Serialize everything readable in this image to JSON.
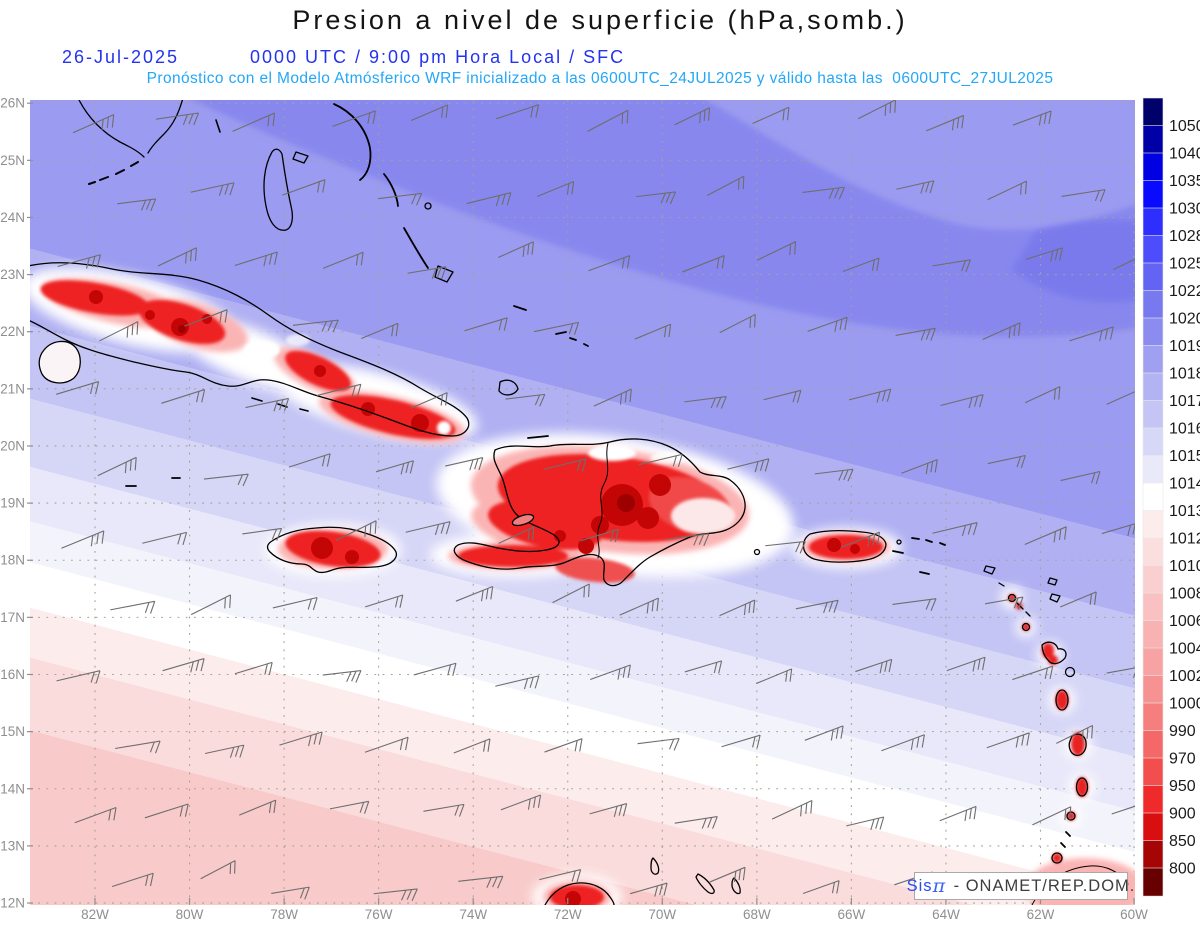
{
  "header": {
    "title": "Presion a nivel de superficie (hPa,somb.)",
    "date": "26-Jul-2025",
    "time_line": "0000 UTC / 9:00 pm Hora Local / SFC",
    "forecast_line": "Pronóstico con el Modelo Atmósferico WRF inicializado a las 0600UTC_24JUL2025 y válido hasta las  0600UTC_27JUL2025"
  },
  "map": {
    "lat_labels": [
      "26N",
      "25N",
      "24N",
      "23N",
      "22N",
      "21N",
      "20N",
      "19N",
      "18N",
      "17N",
      "16N",
      "15N",
      "14N",
      "13N",
      "12N"
    ],
    "lon_labels": [
      "82W",
      "80W",
      "78W",
      "76W",
      "74W",
      "72W",
      "70W",
      "68W",
      "66W",
      "64W",
      "62W",
      "60W"
    ],
    "attribution": {
      "brand": "Sis",
      "pi": "π",
      "rest": " - ONAMET/REP.DOM."
    }
  },
  "colorbar": {
    "labels": [
      "1050",
      "1040",
      "1035",
      "1030",
      "1028",
      "1025",
      "1022",
      "1020",
      "1019",
      "1018",
      "1017",
      "1016",
      "1015",
      "1014",
      "1013",
      "1012",
      "1010",
      "1008",
      "1006",
      "1004",
      "1002",
      "1000",
      "990",
      "970",
      "950",
      "900",
      "850",
      "800"
    ],
    "colors": [
      "#00006b",
      "#0000a6",
      "#0000e3",
      "#0a0aff",
      "#2e2eff",
      "#4d4dfc",
      "#6363f4",
      "#7878ef",
      "#8c8cf0",
      "#a0a0f1",
      "#b3b3f3",
      "#c5c5f5",
      "#d7d7f7",
      "#e9e9fa",
      "#ffffff",
      "#fcecec",
      "#fbdede",
      "#facfcf",
      "#f9c1c1",
      "#f8b2b2",
      "#f7a3a3",
      "#f69292",
      "#f57f7f",
      "#f46868",
      "#f34e4e",
      "#ef2a2a",
      "#d90f0f",
      "#a50505",
      "#670000"
    ]
  },
  "style": {
    "title_color": "#141414",
    "date_color": "#2433ee",
    "forecast_color": "#23a7f8",
    "axis_color": "#8f8f8f",
    "grid_color": "#a3a396",
    "barb_color": "#6e6e6e",
    "coast_color": "#000000"
  },
  "chart_data": {
    "type": "heatmap",
    "field": "surface pressure",
    "units": "hPa",
    "colorbar_levels": [
      1050,
      1040,
      1035,
      1030,
      1028,
      1025,
      1022,
      1020,
      1019,
      1018,
      1017,
      1016,
      1015,
      1014,
      1013,
      1012,
      1010,
      1008,
      1006,
      1004,
      1002,
      1000,
      990,
      970,
      950,
      900,
      850,
      800
    ],
    "lat_range": [
      "12N",
      "26N"
    ],
    "lon_range": [
      "82W",
      "60W"
    ],
    "legend_position": "right",
    "grid": "dotted"
  }
}
